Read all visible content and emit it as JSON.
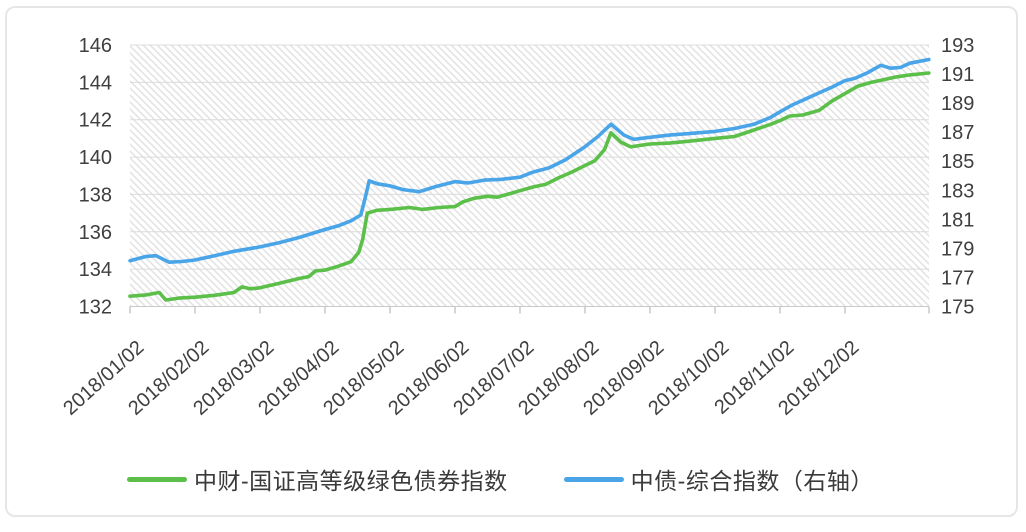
{
  "legend": [
    {
      "label": "中财-国证高等级绿色债券指数",
      "color": "#5bbf4a"
    },
    {
      "label": "中债-综合指数（右轴）",
      "color": "#4aa5e8"
    }
  ],
  "colors": {
    "green_series": "#5bbf4a",
    "blue_series": "#4aa5e8",
    "axis_text": "#3f3f3f",
    "gridline": "#dcdcdc",
    "hatch_line": "#e3e3e3",
    "tick_mark": "#c9c9c9",
    "card_border": "#e7e5e7",
    "bottom_strip": "#efedef"
  },
  "chart_data": {
    "type": "line",
    "title": "",
    "x_tick_labels": [
      "2018/01/02",
      "2018/02/02",
      "2018/03/02",
      "2018/04/02",
      "2018/05/02",
      "2018/06/02",
      "2018/07/02",
      "2018/08/02",
      "2018/09/02",
      "2018/10/02",
      "2018/11/02",
      "2018/12/02"
    ],
    "x_domain_months": [
      0,
      12.29
    ],
    "left_axis": {
      "min": 132,
      "max": 146,
      "ticks": [
        146,
        144,
        142,
        140,
        138,
        136,
        134,
        132
      ]
    },
    "right_axis": {
      "min": 175,
      "max": 193,
      "ticks": [
        193,
        191,
        189,
        187,
        185,
        183,
        181,
        179,
        177,
        175
      ]
    },
    "grid": "horizontal",
    "plot_background": "diagonal-hatch",
    "legend_position": "bottom",
    "series": [
      {
        "name": "中财-国证高等级绿色债券指数",
        "axis": "left",
        "color": "#5bbf4a",
        "points": [
          [
            0,
            132.55
          ],
          [
            0.25,
            132.62
          ],
          [
            0.45,
            132.75
          ],
          [
            0.55,
            132.35
          ],
          [
            0.75,
            132.45
          ],
          [
            1.0,
            132.5
          ],
          [
            1.3,
            132.6
          ],
          [
            1.6,
            132.75
          ],
          [
            1.72,
            133.05
          ],
          [
            1.85,
            132.95
          ],
          [
            2.0,
            133.0
          ],
          [
            2.3,
            133.25
          ],
          [
            2.6,
            133.5
          ],
          [
            2.75,
            133.6
          ],
          [
            2.85,
            133.9
          ],
          [
            3.0,
            133.95
          ],
          [
            3.2,
            134.15
          ],
          [
            3.4,
            134.4
          ],
          [
            3.52,
            134.9
          ],
          [
            3.58,
            135.6
          ],
          [
            3.65,
            137.0
          ],
          [
            3.8,
            137.15
          ],
          [
            4.0,
            137.2
          ],
          [
            4.3,
            137.3
          ],
          [
            4.5,
            137.2
          ],
          [
            4.75,
            137.3
          ],
          [
            5.0,
            137.35
          ],
          [
            5.12,
            137.6
          ],
          [
            5.3,
            137.8
          ],
          [
            5.5,
            137.9
          ],
          [
            5.65,
            137.85
          ],
          [
            5.85,
            138.05
          ],
          [
            6.0,
            138.2
          ],
          [
            6.2,
            138.4
          ],
          [
            6.4,
            138.55
          ],
          [
            6.6,
            138.9
          ],
          [
            6.8,
            139.2
          ],
          [
            7.0,
            139.55
          ],
          [
            7.15,
            139.8
          ],
          [
            7.3,
            140.4
          ],
          [
            7.4,
            141.3
          ],
          [
            7.55,
            140.8
          ],
          [
            7.7,
            140.55
          ],
          [
            8.0,
            140.7
          ],
          [
            8.3,
            140.75
          ],
          [
            8.6,
            140.85
          ],
          [
            9.0,
            141.0
          ],
          [
            9.3,
            141.1
          ],
          [
            9.6,
            141.45
          ],
          [
            9.85,
            141.75
          ],
          [
            10.0,
            141.95
          ],
          [
            10.15,
            142.2
          ],
          [
            10.35,
            142.25
          ],
          [
            10.6,
            142.5
          ],
          [
            10.8,
            143.0
          ],
          [
            11.0,
            143.4
          ],
          [
            11.2,
            143.8
          ],
          [
            11.4,
            144.0
          ],
          [
            11.6,
            144.15
          ],
          [
            11.8,
            144.3
          ],
          [
            12.0,
            144.4
          ],
          [
            12.29,
            144.5
          ]
        ]
      },
      {
        "name": "中债-综合指数（右轴）",
        "axis": "right",
        "color": "#4aa5e8",
        "points": [
          [
            0,
            178.15
          ],
          [
            0.25,
            178.45
          ],
          [
            0.4,
            178.5
          ],
          [
            0.6,
            178.05
          ],
          [
            0.8,
            178.1
          ],
          [
            1.0,
            178.2
          ],
          [
            1.3,
            178.5
          ],
          [
            1.6,
            178.8
          ],
          [
            2.0,
            179.1
          ],
          [
            2.3,
            179.4
          ],
          [
            2.6,
            179.75
          ],
          [
            3.0,
            180.3
          ],
          [
            3.2,
            180.55
          ],
          [
            3.4,
            180.9
          ],
          [
            3.55,
            181.3
          ],
          [
            3.62,
            182.5
          ],
          [
            3.68,
            183.65
          ],
          [
            3.8,
            183.45
          ],
          [
            4.0,
            183.3
          ],
          [
            4.2,
            183.05
          ],
          [
            4.45,
            182.9
          ],
          [
            4.7,
            183.25
          ],
          [
            5.0,
            183.6
          ],
          [
            5.2,
            183.5
          ],
          [
            5.45,
            183.7
          ],
          [
            5.7,
            183.75
          ],
          [
            6.0,
            183.9
          ],
          [
            6.2,
            184.25
          ],
          [
            6.45,
            184.55
          ],
          [
            6.7,
            185.1
          ],
          [
            7.0,
            186.0
          ],
          [
            7.2,
            186.7
          ],
          [
            7.4,
            187.55
          ],
          [
            7.6,
            186.8
          ],
          [
            7.75,
            186.5
          ],
          [
            8.0,
            186.65
          ],
          [
            8.3,
            186.8
          ],
          [
            8.6,
            186.9
          ],
          [
            9.0,
            187.05
          ],
          [
            9.3,
            187.25
          ],
          [
            9.6,
            187.55
          ],
          [
            9.85,
            188.0
          ],
          [
            10.0,
            188.4
          ],
          [
            10.2,
            188.9
          ],
          [
            10.4,
            189.3
          ],
          [
            10.6,
            189.7
          ],
          [
            10.8,
            190.1
          ],
          [
            11.0,
            190.55
          ],
          [
            11.15,
            190.7
          ],
          [
            11.35,
            191.1
          ],
          [
            11.55,
            191.6
          ],
          [
            11.7,
            191.4
          ],
          [
            11.85,
            191.45
          ],
          [
            12.0,
            191.75
          ],
          [
            12.29,
            192.0
          ]
        ]
      }
    ]
  }
}
